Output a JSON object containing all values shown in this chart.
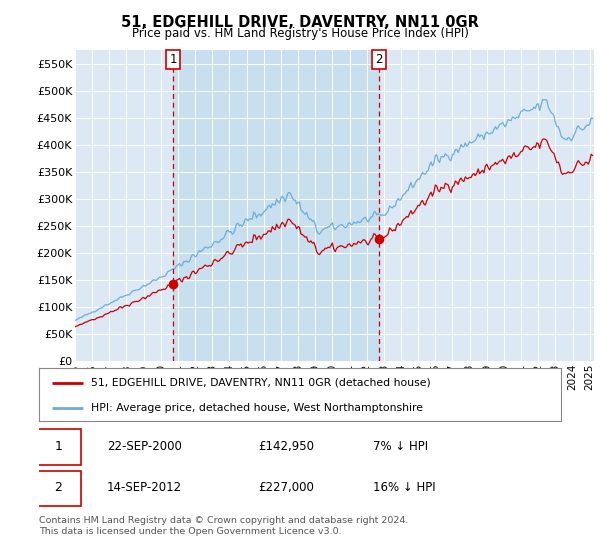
{
  "title": "51, EDGEHILL DRIVE, DAVENTRY, NN11 0GR",
  "subtitle": "Price paid vs. HM Land Registry's House Price Index (HPI)",
  "background_color": "#ffffff",
  "plot_bg_color": "#dce9f5",
  "grid_color": "#ffffff",
  "fill_color": "#c8dff0",
  "ylim": [
    0,
    575000
  ],
  "yticks": [
    0,
    50000,
    100000,
    150000,
    200000,
    250000,
    300000,
    350000,
    400000,
    450000,
    500000,
    550000
  ],
  "ytick_labels": [
    "£0",
    "£50K",
    "£100K",
    "£150K",
    "£200K",
    "£250K",
    "£300K",
    "£350K",
    "£400K",
    "£450K",
    "£500K",
    "£550K"
  ],
  "hpi_color": "#6baed6",
  "price_color": "#cc0000",
  "marker_color": "#cc0000",
  "vline_color": "#cc0000",
  "annotation_box_color": "#cc0000",
  "legend_label_price": "51, EDGEHILL DRIVE, DAVENTRY, NN11 0GR (detached house)",
  "legend_label_hpi": "HPI: Average price, detached house, West Northamptonshire",
  "sale1_date": "22-SEP-2000",
  "sale1_price": "£142,950",
  "sale1_info": "7% ↓ HPI",
  "sale1_x": 2000.72,
  "sale1_y": 142950,
  "sale2_date": "14-SEP-2012",
  "sale2_price": "£227,000",
  "sale2_info": "16% ↓ HPI",
  "sale2_x": 2012.72,
  "sale2_y": 227000,
  "footer": "Contains HM Land Registry data © Crown copyright and database right 2024.\nThis data is licensed under the Open Government Licence v3.0.",
  "xmin": 1995.0,
  "xmax": 2025.25,
  "hpi_scale_factor": 1.0,
  "price_scale": 0.93
}
